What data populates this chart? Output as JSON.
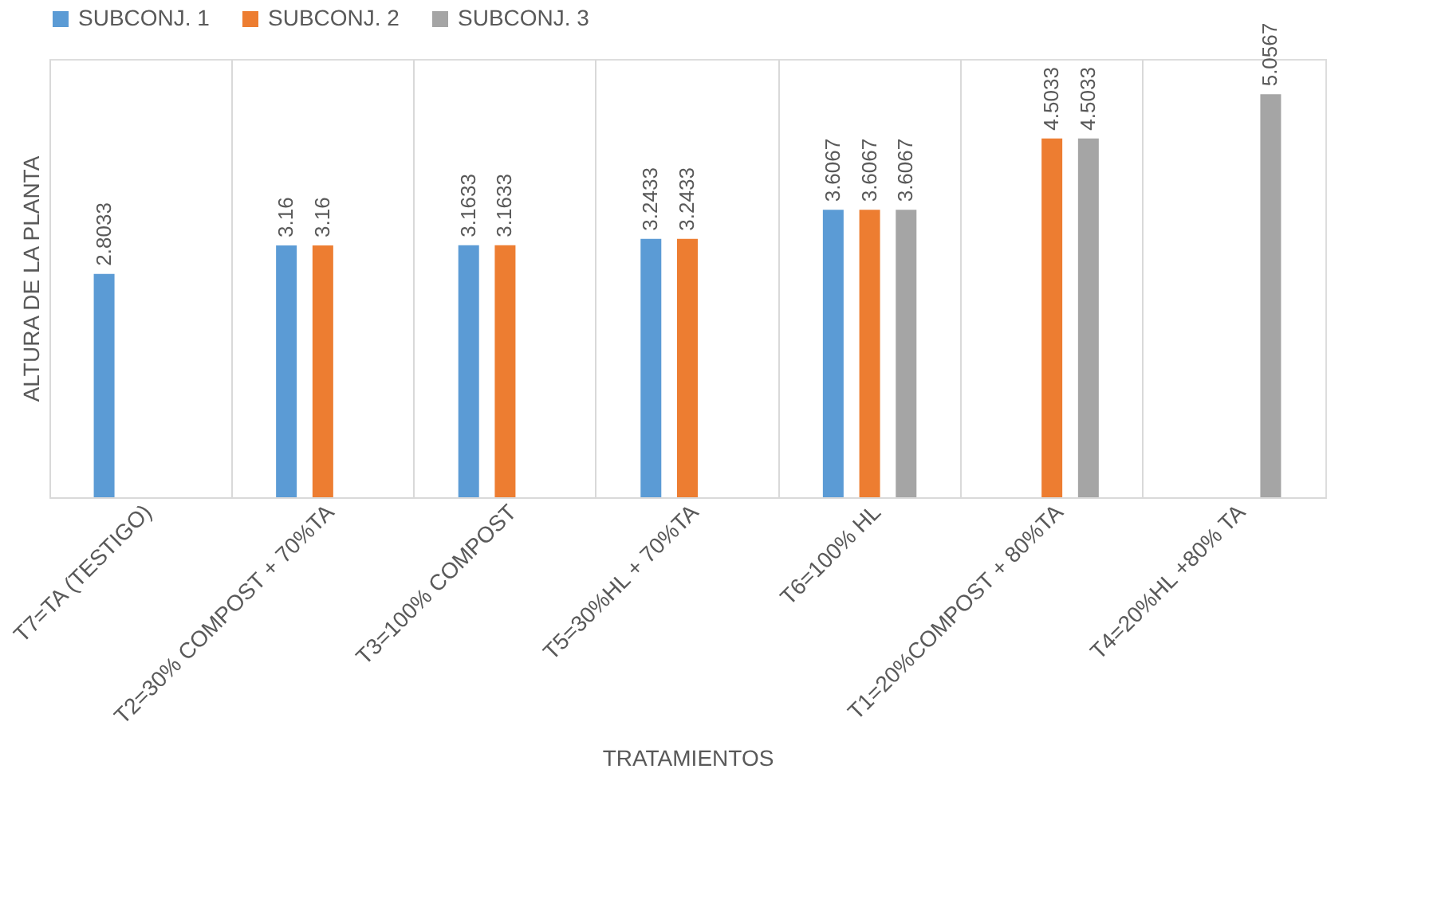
{
  "chart_data": {
    "type": "bar",
    "xlabel": "TRATAMIENTOS",
    "ylabel": "ALTURA DE LA PLANTA",
    "categories": [
      "T7=TA (TESTIGO)",
      "T2=30% COMPOST + 70%TA",
      "T3=100% COMPOST",
      "T5=30%HL + 70%TA",
      "T6=100% HL",
      "T1=20%COMPOST + 80%TA",
      "T4=20%HL +80% TA"
    ],
    "series": [
      {
        "name": "SUBCONJ. 1",
        "color": "#5b9bd5",
        "values": [
          2.8033,
          3.16,
          3.1633,
          3.2433,
          3.6067,
          null,
          null
        ]
      },
      {
        "name": "SUBCONJ. 2",
        "color": "#ed7d31",
        "values": [
          null,
          3.16,
          3.1633,
          3.2433,
          3.6067,
          4.5033,
          null
        ]
      },
      {
        "name": "SUBCONJ. 3",
        "color": "#a5a5a5",
        "values": [
          null,
          null,
          null,
          null,
          3.6067,
          4.5033,
          5.0567
        ]
      }
    ],
    "data_labels": true,
    "legend": "top",
    "grid": "x",
    "tick_labels": "x"
  }
}
